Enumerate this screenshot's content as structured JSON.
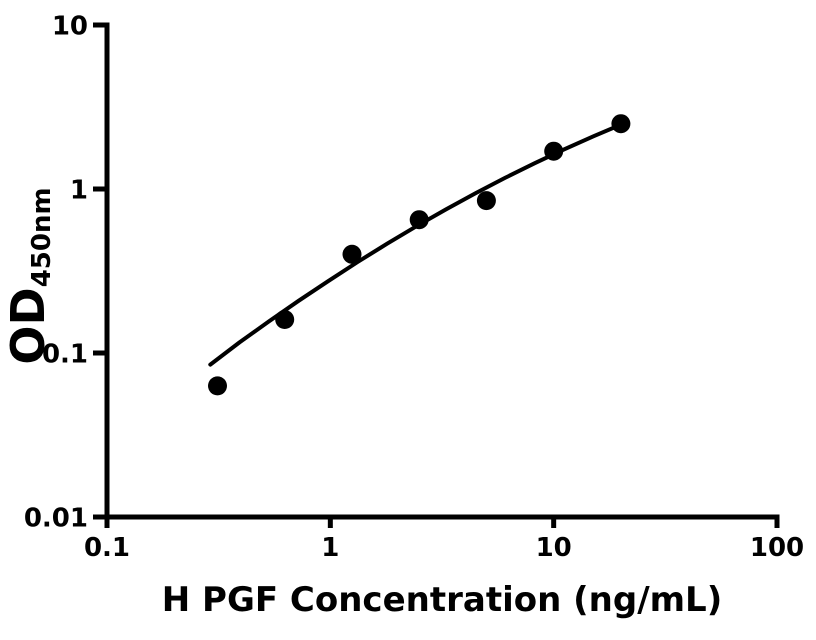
{
  "figure": {
    "background": "#ffffff",
    "foreground": "#000000"
  },
  "chart_data": {
    "type": "scatter",
    "title": "",
    "xlabel": "H PGF Concentration (ng/mL)",
    "ylabel_main": "OD",
    "ylabel_sub": "450nm",
    "x_scale": "log10",
    "y_scale": "log10",
    "xlim": [
      0.1,
      100
    ],
    "ylim": [
      0.01,
      10
    ],
    "grid": false,
    "legend": false,
    "x_ticks": [
      {
        "value": 0.1,
        "label": "0.1"
      },
      {
        "value": 1,
        "label": "1"
      },
      {
        "value": 10,
        "label": "10"
      },
      {
        "value": 100,
        "label": "100"
      }
    ],
    "y_ticks": [
      {
        "value": 10,
        "label": "10"
      },
      {
        "value": 1,
        "label": "1"
      },
      {
        "value": 0.1,
        "label": "0.1"
      },
      {
        "value": 0.01,
        "label": "0.01"
      }
    ],
    "series": [
      {
        "name": "standard-points",
        "marker": "filled-circle",
        "color": "#000000",
        "points": [
          {
            "x": 0.3125,
            "y": 0.063
          },
          {
            "x": 0.625,
            "y": 0.16
          },
          {
            "x": 1.25,
            "y": 0.4
          },
          {
            "x": 2.5,
            "y": 0.65
          },
          {
            "x": 5,
            "y": 0.85
          },
          {
            "x": 10,
            "y": 1.7
          },
          {
            "x": 20,
            "y": 2.5
          }
        ]
      }
    ],
    "fit_curve": {
      "name": "fitted-curve",
      "color": "#000000",
      "x": [
        0.29,
        0.392,
        0.532,
        0.721,
        0.977,
        1.324,
        1.795,
        2.432,
        3.296,
        4.467,
        6.053,
        8.204,
        11.12,
        15.07,
        20.42
      ],
      "y": [
        0.085,
        0.116,
        0.156,
        0.208,
        0.274,
        0.359,
        0.464,
        0.593,
        0.751,
        0.942,
        1.169,
        1.435,
        1.744,
        2.097,
        2.497
      ]
    }
  }
}
